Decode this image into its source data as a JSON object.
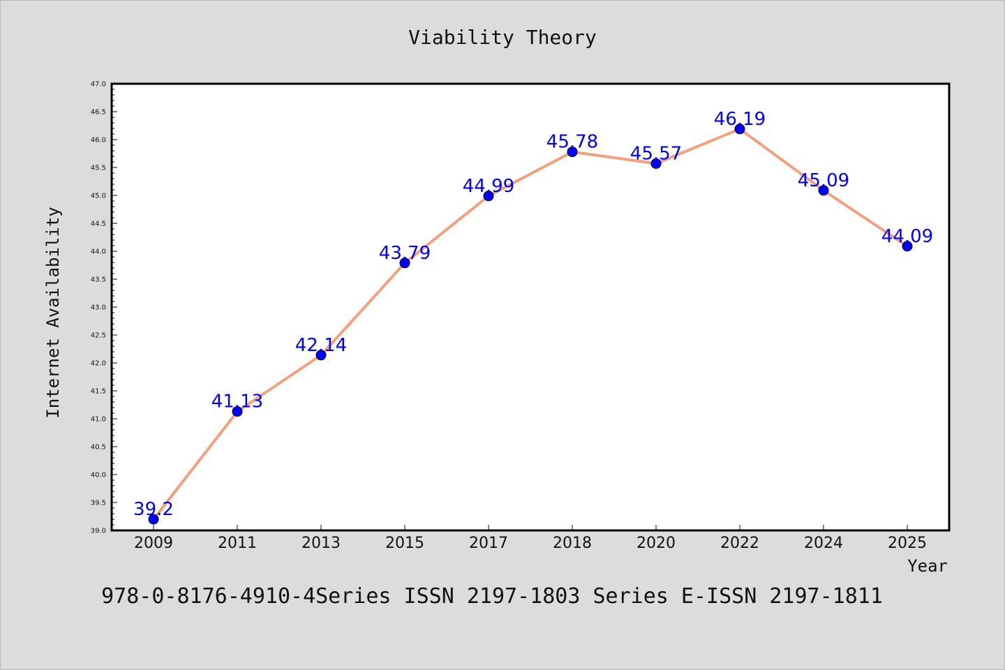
{
  "chart_data": {
    "type": "line",
    "title": "Viability Theory",
    "xlabel": "Year",
    "ylabel": "Internet Availability",
    "categories": [
      "2009",
      "2011",
      "2013",
      "2015",
      "2017",
      "2018",
      "2020",
      "2022",
      "2024",
      "2025"
    ],
    "series": [
      {
        "values": [
          39.2,
          41.13,
          42.14,
          43.79,
          44.99,
          45.78,
          45.57,
          46.19,
          45.09,
          44.09
        ],
        "labels": [
          "39.2",
          "41.13",
          "42.14",
          "43.79",
          "44.99",
          "45.78",
          "45.57",
          "46.19",
          "45.09",
          "44.09"
        ],
        "line_color": "#f4a07f",
        "marker_color": "#0000ff"
      }
    ],
    "ylim": [
      39.0,
      47.0
    ],
    "yticks": [
      "39.0",
      "39.5",
      "40.0",
      "40.5",
      "41.0",
      "41.5",
      "42.0",
      "42.5",
      "43.0",
      "43.5",
      "44.0",
      "44.5",
      "45.0",
      "45.5",
      "46.0",
      "46.5",
      "47.0"
    ],
    "grid": false,
    "legend": "none"
  },
  "footer": {
    "text": "978-0-8176-4910-4Series ISSN 2197-1803 Series E-ISSN 2197-1811"
  },
  "colors": {
    "background": "#dcdcdc",
    "plot_background": "#ffffff",
    "axis": "#000000"
  }
}
